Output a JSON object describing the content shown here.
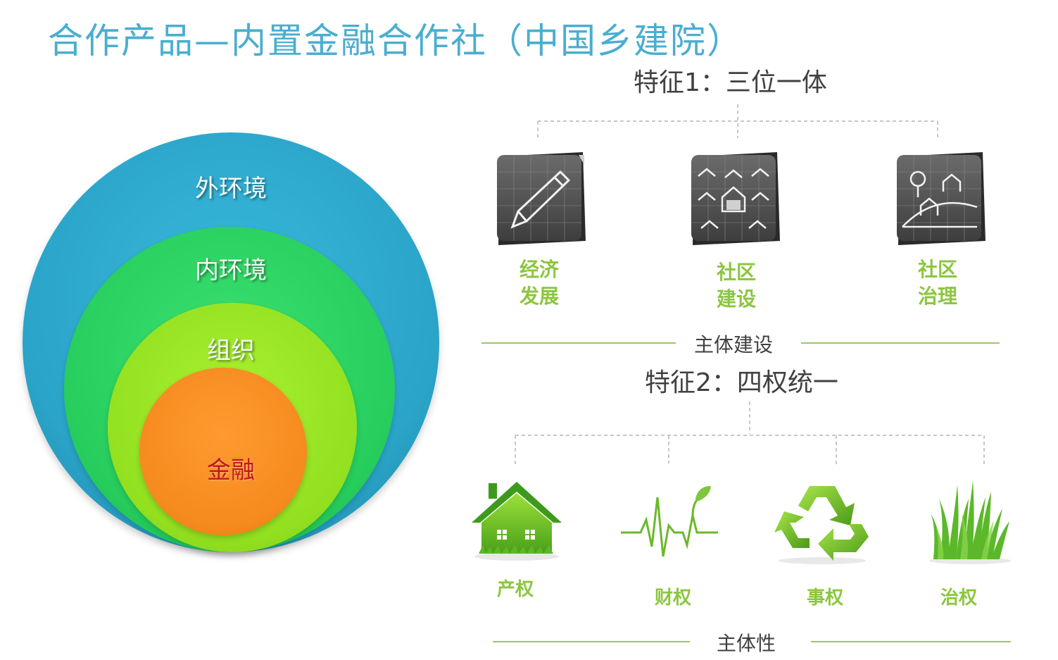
{
  "title": "合作产品—内置金融合作社（中国乡建院）",
  "circles": {
    "outer": "外环境",
    "inner": "内环境",
    "org": "组织",
    "finance": "金融"
  },
  "feature1": {
    "heading": "特征1：三位一体",
    "items": [
      {
        "line1": "经济",
        "line2": "发展",
        "icon": "pencil-icon"
      },
      {
        "line1": "社区",
        "line2": "建设",
        "icon": "houses-network-icon"
      },
      {
        "line1": "社区",
        "line2": "治理",
        "icon": "hill-houses-icon"
      }
    ],
    "footer": "主体建设"
  },
  "feature2": {
    "heading": "特征2：四权统一",
    "items": [
      {
        "label": "产权",
        "icon": "green-house-icon"
      },
      {
        "label": "财权",
        "icon": "heartbeat-sprout-icon"
      },
      {
        "label": "事权",
        "icon": "recycle-icon"
      },
      {
        "label": "治权",
        "icon": "grass-icon"
      }
    ],
    "footer": "主体性"
  },
  "colors": {
    "title": "#4aaed0",
    "accent_green": "#8cc63f",
    "outer_circle": "#2aa4c8",
    "inner_circle": "#26cc5c",
    "org_circle": "#92e020",
    "finance_circle": "#f58a1e",
    "finance_text": "#c0181c"
  }
}
